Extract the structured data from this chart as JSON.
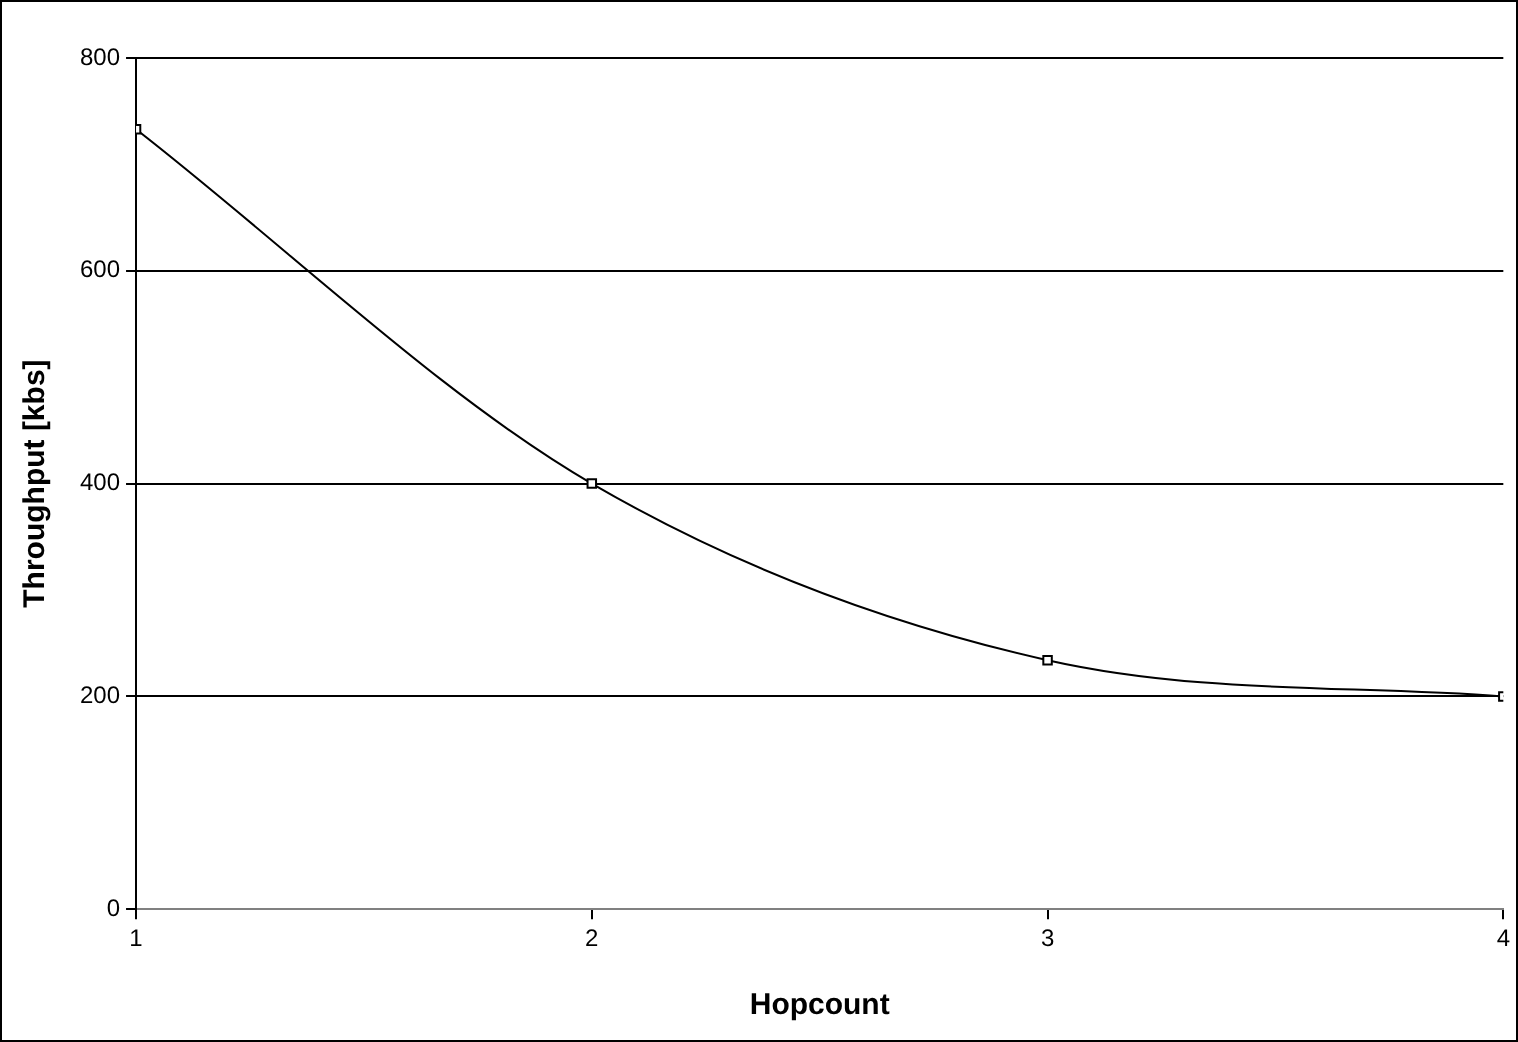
{
  "chart_data": {
    "type": "line",
    "xlabel": "Hopcount",
    "ylabel": "Throughput [kbs]",
    "x": [
      1,
      2,
      3,
      4
    ],
    "series": [
      {
        "color": "#000000",
        "values": [
          733,
          400,
          234,
          200
        ]
      }
    ],
    "xlim": [
      1,
      4
    ],
    "xticks": [
      1,
      2,
      3,
      4
    ],
    "ylim": [
      0,
      800
    ],
    "yticks": [
      0,
      200,
      400,
      600,
      800
    ],
    "grid": "y",
    "legend": false,
    "marker": "square",
    "line_style": "solid"
  }
}
